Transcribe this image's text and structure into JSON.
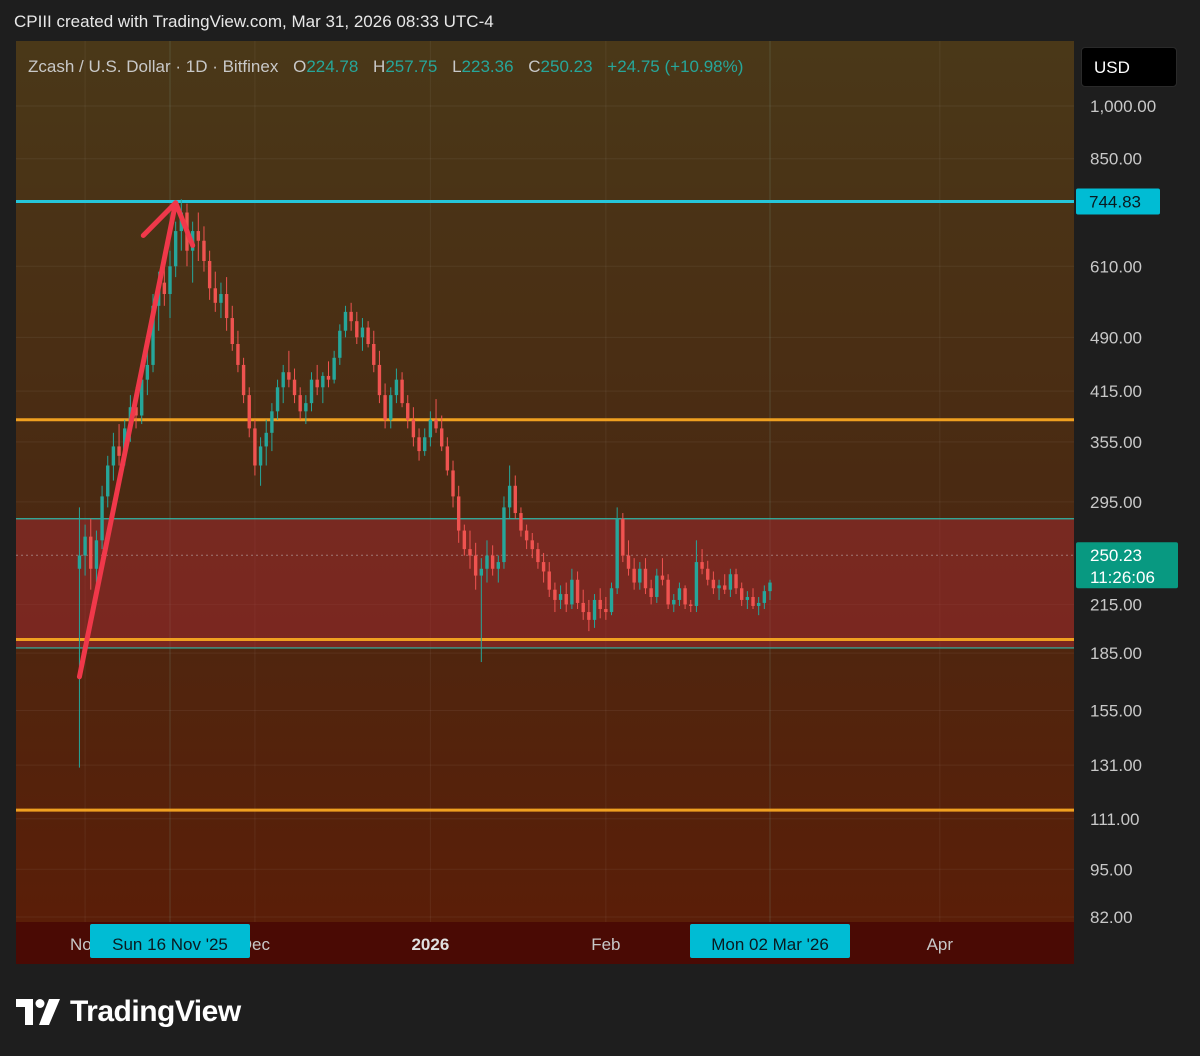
{
  "header": {
    "text": "CPIII created with TradingView.com, Mar 31, 2026 08:33 UTC-4"
  },
  "legend": {
    "symbol": "Zcash / U.S. Dollar · 1D · Bitfinex",
    "o_label": "O",
    "o_value": "224.78",
    "h_label": "H",
    "h_value": "257.75",
    "l_label": "L",
    "l_value": "223.36",
    "c_label": "C",
    "c_value": "250.23",
    "change": "+24.75 (+10.98%)"
  },
  "currency": "USD",
  "colors": {
    "up": "#26a69a",
    "down": "#ef5350",
    "resistance": "#26c6da",
    "support": "#f0a020",
    "range_fill": "#b02a35",
    "arrow": "#f0384a",
    "badge": "#00bcd4",
    "price_badge": "#089981"
  },
  "chart_data": {
    "type": "candlestick",
    "symbol": "Zcash / U.S. Dollar",
    "interval": "1D",
    "exchange": "Bitfinex",
    "y_scale": "log",
    "ylim": [
      82,
      1100
    ],
    "y_ticks": [
      "1,000.00",
      "850.00",
      "610.00",
      "490.00",
      "415.00",
      "355.00",
      "295.00",
      "215.00",
      "185.00",
      "155.00",
      "131.00",
      "111.00",
      "95.00",
      "82.00"
    ],
    "y_tick_values": [
      1000,
      850,
      610,
      490,
      415,
      355,
      295,
      215,
      185,
      155,
      131,
      111,
      95,
      82
    ],
    "x_tick_labels": [
      "Nov",
      "Dec",
      "2026",
      "Feb",
      "Apr"
    ],
    "x_tick_dates": [
      "2025-11-01",
      "2025-12-01",
      "2026-01-01",
      "2026-02-01",
      "2026-04-01"
    ],
    "x_range": [
      "2025-10-31",
      "2026-04-21"
    ],
    "crosshair_labels": [
      {
        "text": "Sun 16 Nov '25",
        "date": "2025-11-16"
      },
      {
        "text": "Mon 02 Mar '26",
        "date": "2026-03-02"
      }
    ],
    "ohlc": [
      [
        "2025-10-31",
        240,
        290,
        130,
        250
      ],
      [
        "2025-11-01",
        250,
        275,
        235,
        265
      ],
      [
        "2025-11-02",
        265,
        280,
        225,
        240
      ],
      [
        "2025-11-03",
        240,
        270,
        230,
        262
      ],
      [
        "2025-11-04",
        262,
        310,
        255,
        300
      ],
      [
        "2025-11-05",
        300,
        340,
        290,
        330
      ],
      [
        "2025-11-06",
        330,
        365,
        315,
        350
      ],
      [
        "2025-11-07",
        350,
        375,
        330,
        340
      ],
      [
        "2025-11-08",
        340,
        380,
        330,
        370
      ],
      [
        "2025-11-09",
        370,
        410,
        355,
        395
      ],
      [
        "2025-11-10",
        395,
        420,
        370,
        385
      ],
      [
        "2025-11-11",
        385,
        440,
        375,
        430
      ],
      [
        "2025-11-12",
        430,
        470,
        410,
        450
      ],
      [
        "2025-11-13",
        450,
        560,
        440,
        540
      ],
      [
        "2025-11-14",
        540,
        600,
        500,
        580
      ],
      [
        "2025-11-15",
        580,
        620,
        540,
        560
      ],
      [
        "2025-11-16",
        560,
        640,
        520,
        610
      ],
      [
        "2025-11-17",
        610,
        700,
        590,
        680
      ],
      [
        "2025-11-18",
        680,
        750,
        640,
        720
      ],
      [
        "2025-11-19",
        720,
        740,
        610,
        640
      ],
      [
        "2025-11-20",
        640,
        700,
        580,
        680
      ],
      [
        "2025-11-21",
        680,
        720,
        620,
        660
      ],
      [
        "2025-11-22",
        660,
        690,
        600,
        620
      ],
      [
        "2025-11-23",
        620,
        640,
        550,
        570
      ],
      [
        "2025-11-24",
        570,
        600,
        530,
        545
      ],
      [
        "2025-11-25",
        545,
        580,
        520,
        560
      ],
      [
        "2025-11-26",
        560,
        590,
        500,
        520
      ],
      [
        "2025-11-27",
        520,
        540,
        470,
        480
      ],
      [
        "2025-11-28",
        480,
        500,
        440,
        450
      ],
      [
        "2025-11-29",
        450,
        460,
        400,
        410
      ],
      [
        "2025-11-30",
        410,
        420,
        360,
        370
      ],
      [
        "2025-12-01",
        370,
        380,
        320,
        330
      ],
      [
        "2025-12-02",
        330,
        360,
        310,
        350
      ],
      [
        "2025-12-03",
        350,
        380,
        330,
        365
      ],
      [
        "2025-12-04",
        365,
        400,
        345,
        390
      ],
      [
        "2025-12-05",
        390,
        430,
        380,
        420
      ],
      [
        "2025-12-06",
        420,
        450,
        400,
        440
      ],
      [
        "2025-12-07",
        440,
        470,
        420,
        430
      ],
      [
        "2025-12-08",
        430,
        445,
        400,
        410
      ],
      [
        "2025-12-09",
        410,
        420,
        380,
        390
      ],
      [
        "2025-12-10",
        390,
        410,
        375,
        400
      ],
      [
        "2025-12-11",
        400,
        440,
        390,
        430
      ],
      [
        "2025-12-12",
        430,
        450,
        410,
        420
      ],
      [
        "2025-12-13",
        420,
        440,
        400,
        435
      ],
      [
        "2025-12-14",
        435,
        455,
        420,
        430
      ],
      [
        "2025-12-15",
        430,
        470,
        425,
        460
      ],
      [
        "2025-12-16",
        460,
        510,
        450,
        500
      ],
      [
        "2025-12-17",
        500,
        540,
        490,
        530
      ],
      [
        "2025-12-18",
        530,
        545,
        500,
        515
      ],
      [
        "2025-12-19",
        515,
        530,
        480,
        490
      ],
      [
        "2025-12-20",
        490,
        520,
        470,
        505
      ],
      [
        "2025-12-21",
        505,
        515,
        475,
        480
      ],
      [
        "2025-12-22",
        480,
        500,
        440,
        450
      ],
      [
        "2025-12-23",
        450,
        470,
        400,
        410
      ],
      [
        "2025-12-24",
        410,
        425,
        370,
        380
      ],
      [
        "2025-12-25",
        380,
        420,
        370,
        410
      ],
      [
        "2025-12-26",
        410,
        445,
        400,
        430
      ],
      [
        "2025-12-27",
        430,
        440,
        395,
        400
      ],
      [
        "2025-12-28",
        400,
        410,
        370,
        380
      ],
      [
        "2025-12-29",
        380,
        395,
        350,
        360
      ],
      [
        "2025-12-30",
        360,
        370,
        335,
        345
      ],
      [
        "2025-12-31",
        345,
        370,
        340,
        360
      ],
      [
        "2026-01-01",
        360,
        390,
        350,
        380
      ],
      [
        "2026-01-02",
        380,
        405,
        365,
        370
      ],
      [
        "2026-01-03",
        370,
        385,
        345,
        350
      ],
      [
        "2026-01-04",
        350,
        360,
        320,
        325
      ],
      [
        "2026-01-05",
        325,
        335,
        290,
        300
      ],
      [
        "2026-01-06",
        300,
        310,
        260,
        270
      ],
      [
        "2026-01-07",
        270,
        275,
        250,
        255
      ],
      [
        "2026-01-08",
        255,
        270,
        240,
        250
      ],
      [
        "2026-01-09",
        250,
        260,
        225,
        235
      ],
      [
        "2026-01-10",
        235,
        248,
        180,
        240
      ],
      [
        "2026-01-11",
        240,
        262,
        230,
        250
      ],
      [
        "2026-01-12",
        250,
        258,
        235,
        240
      ],
      [
        "2026-01-13",
        240,
        250,
        230,
        245
      ],
      [
        "2026-01-14",
        245,
        300,
        240,
        290
      ],
      [
        "2026-01-15",
        290,
        330,
        280,
        310
      ],
      [
        "2026-01-16",
        310,
        320,
        280,
        285
      ],
      [
        "2026-01-17",
        285,
        290,
        265,
        270
      ],
      [
        "2026-01-18",
        270,
        275,
        255,
        262
      ],
      [
        "2026-01-19",
        262,
        268,
        248,
        255
      ],
      [
        "2026-01-20",
        255,
        260,
        240,
        245
      ],
      [
        "2026-01-21",
        245,
        252,
        230,
        238
      ],
      [
        "2026-01-22",
        238,
        245,
        220,
        225
      ],
      [
        "2026-01-23",
        225,
        230,
        210,
        218
      ],
      [
        "2026-01-24",
        218,
        228,
        212,
        222
      ],
      [
        "2026-01-25",
        222,
        230,
        210,
        215
      ],
      [
        "2026-01-26",
        215,
        240,
        212,
        232
      ],
      [
        "2026-01-27",
        232,
        238,
        212,
        216
      ],
      [
        "2026-01-28",
        216,
        225,
        205,
        210
      ],
      [
        "2026-01-29",
        210,
        218,
        198,
        205
      ],
      [
        "2026-01-30",
        205,
        222,
        200,
        218
      ],
      [
        "2026-01-31",
        218,
        226,
        206,
        212
      ],
      [
        "2026-02-01",
        212,
        220,
        205,
        210
      ],
      [
        "2026-02-02",
        210,
        230,
        208,
        226
      ],
      [
        "2026-02-03",
        226,
        290,
        222,
        280
      ],
      [
        "2026-02-04",
        280,
        285,
        245,
        250
      ],
      [
        "2026-02-05",
        250,
        262,
        235,
        240
      ],
      [
        "2026-02-06",
        240,
        248,
        225,
        230
      ],
      [
        "2026-02-07",
        230,
        245,
        225,
        240
      ],
      [
        "2026-02-08",
        240,
        248,
        222,
        226
      ],
      [
        "2026-02-09",
        226,
        232,
        215,
        220
      ],
      [
        "2026-02-10",
        220,
        240,
        216,
        235
      ],
      [
        "2026-02-11",
        235,
        248,
        228,
        232
      ],
      [
        "2026-02-12",
        232,
        236,
        212,
        215
      ],
      [
        "2026-02-13",
        215,
        222,
        210,
        218
      ],
      [
        "2026-02-14",
        218,
        230,
        214,
        226
      ],
      [
        "2026-02-15",
        226,
        228,
        212,
        215
      ],
      [
        "2026-02-16",
        215,
        218,
        210,
        214
      ],
      [
        "2026-02-17",
        214,
        262,
        210,
        245
      ],
      [
        "2026-02-18",
        245,
        255,
        236,
        240
      ],
      [
        "2026-02-19",
        240,
        246,
        228,
        232
      ],
      [
        "2026-02-20",
        232,
        238,
        222,
        226
      ],
      [
        "2026-02-21",
        226,
        232,
        218,
        228
      ],
      [
        "2026-02-22",
        228,
        236,
        222,
        225
      ],
      [
        "2026-02-23",
        225,
        240,
        220,
        236
      ],
      [
        "2026-02-24",
        236,
        240,
        222,
        226
      ],
      [
        "2026-02-25",
        226,
        230,
        214,
        218
      ],
      [
        "2026-02-26",
        218,
        224,
        212,
        220
      ],
      [
        "2026-02-27",
        220,
        226,
        212,
        214
      ],
      [
        "2026-02-28",
        214,
        220,
        208,
        216
      ],
      [
        "2026-03-01",
        216,
        228,
        212,
        224
      ],
      [
        "2026-03-02",
        224,
        232,
        218,
        230
      ]
    ],
    "horizontal_lines": [
      {
        "price": 744.83,
        "label": "744.83",
        "kind": "resistance"
      },
      {
        "price": 380,
        "kind": "support"
      },
      {
        "price": 280,
        "kind": "range-top"
      },
      {
        "price": 193,
        "kind": "support"
      },
      {
        "price": 188,
        "kind": "range-bottom"
      },
      {
        "price": 114,
        "kind": "support"
      }
    ],
    "range_zone": [
      188,
      280
    ],
    "last_price": {
      "value": "250.23",
      "countdown": "11:26:06"
    },
    "annotation_arrow": {
      "from": [
        "2025-10-31",
        172
      ],
      "to": [
        "2025-11-17",
        742
      ]
    }
  },
  "logo": {
    "text": "TradingView"
  }
}
